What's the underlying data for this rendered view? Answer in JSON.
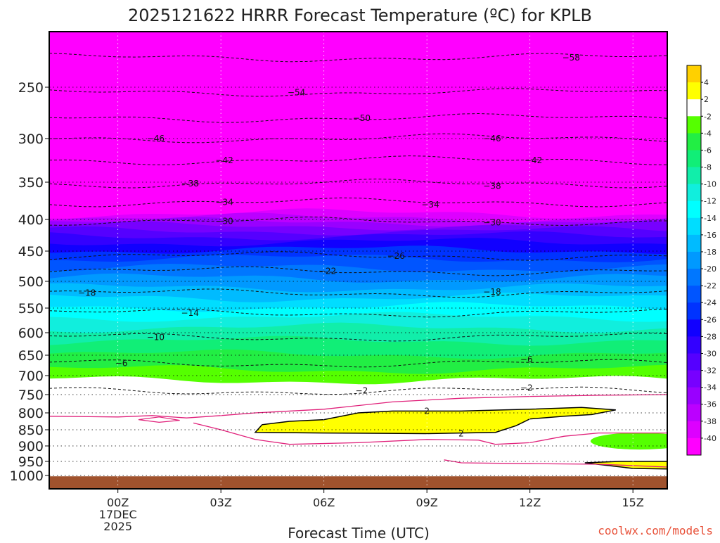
{
  "chart_data": {
    "type": "heatmap",
    "title": "2025121622 HRRR Forecast Temperature (ºC) for KPLB",
    "xlabel": "Forecast Time (UTC)",
    "ylabel": "",
    "credit": "coolwx.com/models",
    "x_ticks": [
      {
        "hour": 0,
        "label": "00Z",
        "sublabels": [
          "17DEC",
          "2025"
        ]
      },
      {
        "hour": 3,
        "label": "03Z",
        "sublabels": []
      },
      {
        "hour": 6,
        "label": "06Z",
        "sublabels": []
      },
      {
        "hour": 9,
        "label": "09Z",
        "sublabels": []
      },
      {
        "hour": 12,
        "label": "12Z",
        "sublabels": []
      },
      {
        "hour": 15,
        "label": "15Z",
        "sublabels": []
      }
    ],
    "xlim": [
      -2,
      16
    ],
    "y_ticks": [
      250,
      300,
      350,
      400,
      450,
      500,
      550,
      600,
      650,
      700,
      750,
      800,
      850,
      900,
      950,
      1000
    ],
    "ylim_hpa": [
      1025,
      200
    ],
    "y_scale": "log-pressure",
    "colorbar": {
      "labels": [
        "4",
        "2",
        "-2",
        "-4",
        "-6",
        "-8",
        "-10",
        "-12",
        "-14",
        "-16",
        "-18",
        "-20",
        "-22",
        "-24",
        "-26",
        "-28",
        "-30",
        "-32",
        "-34",
        "-36",
        "-38",
        "-40"
      ],
      "colors": [
        "#ffd000",
        "#ffff00",
        "#ffffff",
        "#55ff00",
        "#22ee44",
        "#11ee77",
        "#11eeaa",
        "#11eedd",
        "#00ffff",
        "#00ddff",
        "#00bbff",
        "#0099ff",
        "#0077ff",
        "#0055ff",
        "#0033ff",
        "#1100ff",
        "#3300ff",
        "#5500ff",
        "#7700ff",
        "#9900ff",
        "#bb00ff",
        "#dd00ff",
        "#ff00ff"
      ]
    },
    "contour_levels": [
      {
        "value": -58,
        "p": 225,
        "label_hour": 13.2
      },
      {
        "value": -54,
        "p": 255,
        "label_hour": 5.2
      },
      {
        "value": -50,
        "p": 280,
        "label_hour": 7.1
      },
      {
        "value": -46,
        "p": 300,
        "label_hour": 1.1
      },
      {
        "value": -46,
        "p": 300,
        "label_hour": 10.9
      },
      {
        "value": -42,
        "p": 325,
        "label_hour": 3.1
      },
      {
        "value": -42,
        "p": 325,
        "label_hour": 12.1
      },
      {
        "value": -38,
        "p": 352,
        "label_hour": 2.1
      },
      {
        "value": -38,
        "p": 355,
        "label_hour": 10.9
      },
      {
        "value": -34,
        "p": 377,
        "label_hour": 3.1
      },
      {
        "value": -34,
        "p": 380,
        "label_hour": 9.1
      },
      {
        "value": -30,
        "p": 403,
        "label_hour": 3.1
      },
      {
        "value": -30,
        "p": 405,
        "label_hour": 10.9
      },
      {
        "value": -26,
        "p": 458,
        "label_hour": 8.1
      },
      {
        "value": -22,
        "p": 483,
        "label_hour": 6.1
      },
      {
        "value": -18,
        "p": 522,
        "label_hour": -0.9
      },
      {
        "value": -18,
        "p": 520,
        "label_hour": 10.9
      },
      {
        "value": -14,
        "p": 560,
        "label_hour": 2.1
      },
      {
        "value": -10,
        "p": 610,
        "label_hour": 1.1
      },
      {
        "value": -6,
        "p": 670,
        "label_hour": 0.1
      },
      {
        "value": -6,
        "p": 660,
        "label_hour": 11.9
      },
      {
        "value": -2,
        "p": 740,
        "label_hour": 7.1
      },
      {
        "value": -2,
        "p": 732,
        "label_hour": 11.9
      }
    ],
    "regions": [
      {
        "temp_band": "-2 to 2",
        "note": "white layer ~750-900 hPa"
      },
      {
        "temp_band": "2 to 4",
        "note": "warm nose ~790-865 hPa, 04Z-14Z; labeled 2"
      },
      {
        "temp_band": "ground",
        "color": "#a0522d"
      }
    ],
    "grid": true
  }
}
